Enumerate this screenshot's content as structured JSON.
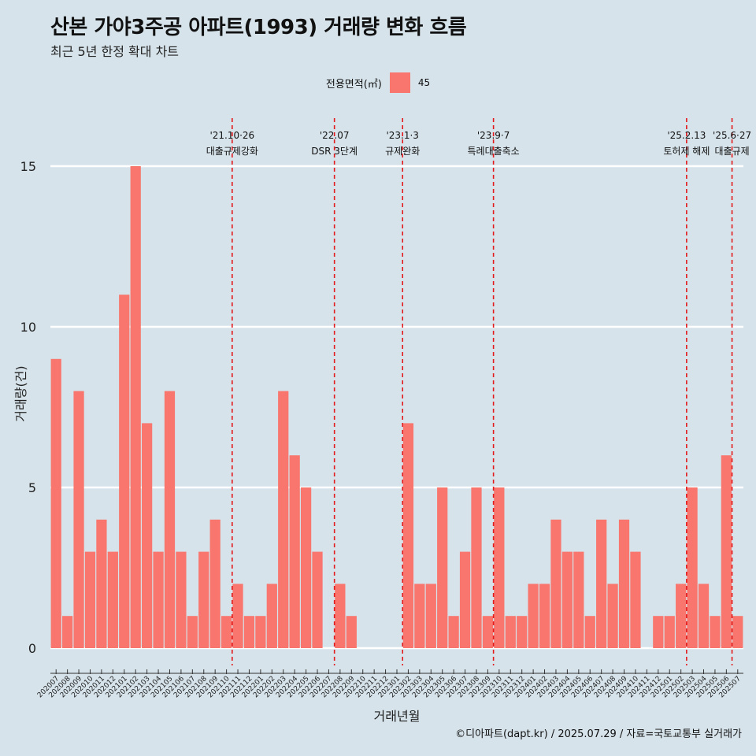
{
  "title": "산본 가야3주공 아파트(1993) 거래량 변화 흐름",
  "subtitle": "최근 5년 한정 확대 차트",
  "legend": {
    "title": "전용면적(㎡)",
    "label": "45",
    "color": "#f8766d"
  },
  "caption": "©디아파트(dapt.kr) / 2025.07.29 / 자료=국토교통부 실거래가",
  "chart_data": {
    "type": "bar",
    "xlabel": "거래년월",
    "ylabel": "거래량(건)",
    "ylim": [
      0,
      15.7
    ],
    "yticks": [
      0,
      5,
      10,
      15
    ],
    "grid": true,
    "legend_position": "top",
    "series": [
      {
        "name": "45",
        "color": "#f8766d",
        "values": [
          9,
          1,
          8,
          3,
          4,
          3,
          11,
          15,
          7,
          3,
          8,
          3,
          1,
          3,
          4,
          1,
          2,
          1,
          1,
          2,
          8,
          6,
          5,
          3,
          0,
          2,
          1,
          0,
          0,
          0,
          0,
          7,
          2,
          2,
          5,
          1,
          3,
          5,
          1,
          5,
          1,
          1,
          2,
          2,
          4,
          3,
          3,
          1,
          4,
          2,
          4,
          3,
          0,
          1,
          1,
          2,
          5,
          2,
          1,
          6,
          1
        ]
      }
    ],
    "categories": [
      "202007",
      "202008",
      "202009",
      "202010",
      "202011",
      "202012",
      "202101",
      "202102",
      "202103",
      "202104",
      "202105",
      "202106",
      "202107",
      "202108",
      "202109",
      "202110",
      "202111",
      "202112",
      "202201",
      "202202",
      "202203",
      "202204",
      "202205",
      "202206",
      "202207",
      "202208",
      "202209",
      "202210",
      "202211",
      "202212",
      "202301",
      "202302",
      "202303",
      "202304",
      "202305",
      "202306",
      "202307",
      "202308",
      "202309",
      "202310",
      "202311",
      "202312",
      "202401",
      "202402",
      "202403",
      "202404",
      "202405",
      "202406",
      "202407",
      "202408",
      "202409",
      "202410",
      "202411",
      "202412",
      "202501",
      "202502",
      "202503",
      "202504",
      "202505",
      "202506",
      "202507"
    ],
    "events": [
      {
        "index": 15.5,
        "date": "'21.10·26",
        "label": "대출규제강화"
      },
      {
        "index": 24.5,
        "date": "'22.07",
        "label": "DSR 3단계"
      },
      {
        "index": 30.5,
        "date": "'23.1·3",
        "label": "규제완화"
      },
      {
        "index": 38.5,
        "date": "'23.9·7",
        "label": "특례대출축소"
      },
      {
        "index": 55.5,
        "date": "'25.2.13",
        "label": "토허제 해제"
      },
      {
        "index": 59.5,
        "date": "'25.6·27",
        "label": "대출규제"
      }
    ]
  }
}
